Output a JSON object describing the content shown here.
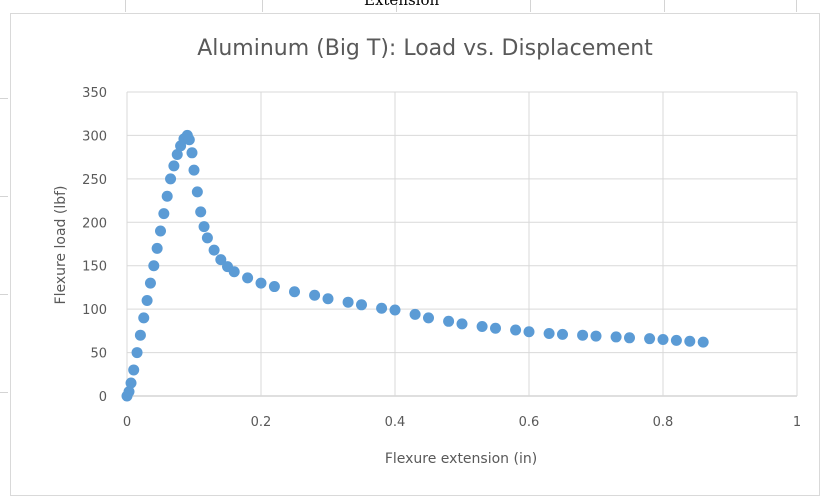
{
  "page_header_text": "Extension",
  "chart_data": {
    "type": "scatter",
    "title": "Aluminum (Big T): Load vs. Displacement",
    "xlabel": "Flexure extension (in)",
    "ylabel": "Flexure load (lbf)",
    "xlim": [
      0,
      1
    ],
    "ylim": [
      0,
      350
    ],
    "xticks": [
      0,
      0.2,
      0.4,
      0.6,
      0.8,
      1
    ],
    "xtick_labels": [
      "0",
      "0.2",
      "0.4",
      "0.6",
      "0.8",
      "1"
    ],
    "yticks": [
      0,
      50,
      100,
      150,
      200,
      250,
      300,
      350
    ],
    "ytick_labels": [
      "0",
      "50",
      "100",
      "150",
      "200",
      "250",
      "300",
      "350"
    ],
    "grid": true,
    "legend": false,
    "marker_color": "#5b9bd5",
    "series": [
      {
        "points": [
          [
            0.0,
            0
          ],
          [
            0.003,
            5
          ],
          [
            0.006,
            15
          ],
          [
            0.01,
            30
          ],
          [
            0.015,
            50
          ],
          [
            0.02,
            70
          ],
          [
            0.025,
            90
          ],
          [
            0.03,
            110
          ],
          [
            0.035,
            130
          ],
          [
            0.04,
            150
          ],
          [
            0.045,
            170
          ],
          [
            0.05,
            190
          ],
          [
            0.055,
            210
          ],
          [
            0.06,
            230
          ],
          [
            0.065,
            250
          ],
          [
            0.07,
            265
          ],
          [
            0.075,
            278
          ],
          [
            0.08,
            288
          ],
          [
            0.085,
            296
          ],
          [
            0.09,
            300
          ],
          [
            0.093,
            295
          ],
          [
            0.097,
            280
          ],
          [
            0.1,
            260
          ],
          [
            0.105,
            235
          ],
          [
            0.11,
            212
          ],
          [
            0.115,
            195
          ],
          [
            0.12,
            182
          ],
          [
            0.13,
            168
          ],
          [
            0.14,
            157
          ],
          [
            0.15,
            149
          ],
          [
            0.16,
            143
          ],
          [
            0.18,
            136
          ],
          [
            0.2,
            130
          ],
          [
            0.22,
            126
          ],
          [
            0.25,
            120
          ],
          [
            0.28,
            116
          ],
          [
            0.3,
            112
          ],
          [
            0.33,
            108
          ],
          [
            0.35,
            105
          ],
          [
            0.38,
            101
          ],
          [
            0.4,
            99
          ],
          [
            0.43,
            94
          ],
          [
            0.45,
            90
          ],
          [
            0.48,
            86
          ],
          [
            0.5,
            83
          ],
          [
            0.53,
            80
          ],
          [
            0.55,
            78
          ],
          [
            0.58,
            76
          ],
          [
            0.6,
            74
          ],
          [
            0.63,
            72
          ],
          [
            0.65,
            71
          ],
          [
            0.68,
            70
          ],
          [
            0.7,
            69
          ],
          [
            0.73,
            68
          ],
          [
            0.75,
            67
          ],
          [
            0.78,
            66
          ],
          [
            0.8,
            65
          ],
          [
            0.82,
            64
          ],
          [
            0.84,
            63
          ],
          [
            0.86,
            62
          ]
        ]
      }
    ]
  }
}
